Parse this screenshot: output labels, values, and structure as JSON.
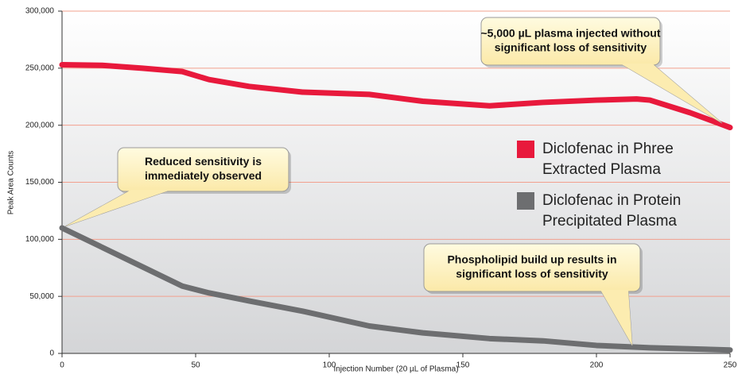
{
  "chart_data": {
    "type": "line",
    "x_label": "Injection Number (20 µL of Plasma)",
    "y_label": "Peak Area Counts",
    "x": [
      0,
      15,
      30,
      45,
      55,
      70,
      90,
      115,
      135,
      160,
      180,
      200,
      215,
      220,
      235,
      250
    ],
    "series": [
      {
        "name": "Diclofenac in Phree Extracted Plasma",
        "color": "#e8193c",
        "values": [
          253000,
          252500,
          250000,
          247000,
          240000,
          234000,
          229000,
          227000,
          221000,
          217000,
          220000,
          222000,
          223000,
          222000,
          211000,
          198000
        ]
      },
      {
        "name": "Diclofenac in Protein Precipitated Plasma",
        "color": "#6d6e70",
        "values": [
          110000,
          93000,
          76000,
          59000,
          53000,
          46000,
          37000,
          24000,
          18000,
          13000,
          11000,
          7000,
          5500,
          5000,
          4000,
          3000
        ]
      }
    ],
    "xlim": [
      0,
      250
    ],
    "xticks": [
      0,
      50,
      100,
      150,
      200,
      250
    ],
    "ylim": [
      0,
      300000
    ],
    "yticks": [
      0,
      {
        "value": 50000,
        "label": "50,000"
      },
      {
        "value": 100000,
        "label": "100,000"
      },
      {
        "value": 150000,
        "label": "150,000"
      },
      {
        "value": 200000,
        "label": "200,000"
      },
      {
        "value": 250000,
        "label": "250,000"
      },
      {
        "value": 300000,
        "label": "300,000"
      }
    ],
    "grid": true,
    "annotations": [
      {
        "text": [
          "Reduced sensitivity is",
          "immediately observed"
        ]
      },
      {
        "text": [
          "~5,000 µL plasma injected without",
          "significant loss of sensitivity"
        ]
      },
      {
        "text": [
          "Phospholipid build up results in",
          "significant loss of sensitivity"
        ]
      }
    ]
  }
}
